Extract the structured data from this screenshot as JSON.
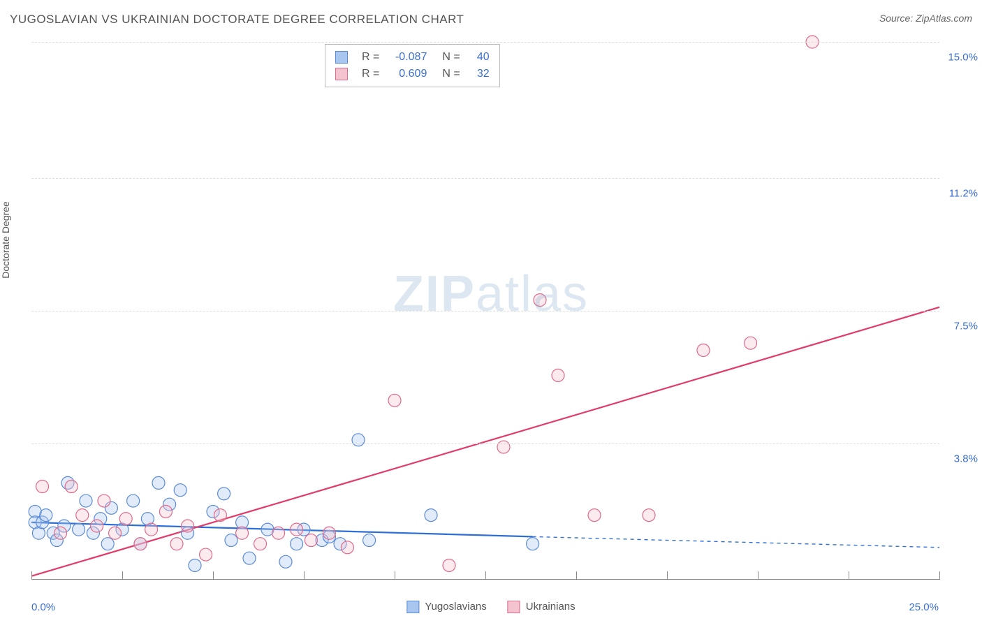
{
  "title": "YUGOSLAVIAN VS UKRAINIAN DOCTORATE DEGREE CORRELATION CHART",
  "source_prefix": "Source: ",
  "source_name": "ZipAtlas.com",
  "ylabel": "Doctorate Degree",
  "watermark_bold": "ZIP",
  "watermark_light": "atlas",
  "chart": {
    "type": "scatter",
    "background_color": "#ffffff",
    "grid_color": "#dddddd",
    "grid_dash": "4,4",
    "axis_color": "#888888",
    "label_color": "#3b6fd4",
    "label_fontsize": 15,
    "xlim": [
      0.0,
      25.0
    ],
    "ylim": [
      0.0,
      15.0
    ],
    "xtick_positions": [
      0,
      2.5,
      5,
      7.5,
      10,
      12.5,
      15,
      17.5,
      20,
      22.5,
      25
    ],
    "ytick_positions": [
      3.8,
      7.5,
      11.2,
      15.0
    ],
    "ytick_labels": [
      "3.8%",
      "7.5%",
      "11.2%",
      "15.0%"
    ],
    "x_left_label": "0.0%",
    "x_right_label": "25.0%",
    "marker_radius": 9,
    "marker_stroke_width": 1.2,
    "marker_fill_opacity": 0.35,
    "trend_line_width": 2.2
  },
  "series": [
    {
      "name": "Yugoslavians",
      "fill": "#a9c6ee",
      "stroke": "#5a8bd8",
      "line_color": "#2e6fd6",
      "r_label": "R =",
      "r_value": "-0.087",
      "n_label": "N =",
      "n_value": "40",
      "trend": {
        "x1": 0.0,
        "y1": 1.6,
        "x2": 13.8,
        "y2": 1.2,
        "ext_x2": 25.0,
        "ext_y2": 0.9
      },
      "points": [
        [
          0.1,
          1.9
        ],
        [
          0.1,
          1.6
        ],
        [
          0.2,
          1.3
        ],
        [
          0.3,
          1.6
        ],
        [
          0.4,
          1.8
        ],
        [
          0.6,
          1.3
        ],
        [
          0.7,
          1.1
        ],
        [
          0.9,
          1.5
        ],
        [
          1.0,
          2.7
        ],
        [
          1.3,
          1.4
        ],
        [
          1.5,
          2.2
        ],
        [
          1.7,
          1.3
        ],
        [
          1.9,
          1.7
        ],
        [
          2.1,
          1.0
        ],
        [
          2.2,
          2.0
        ],
        [
          2.5,
          1.4
        ],
        [
          2.8,
          2.2
        ],
        [
          3.0,
          1.0
        ],
        [
          3.2,
          1.7
        ],
        [
          3.5,
          2.7
        ],
        [
          3.8,
          2.1
        ],
        [
          4.1,
          2.5
        ],
        [
          4.3,
          1.3
        ],
        [
          4.5,
          0.4
        ],
        [
          5.0,
          1.9
        ],
        [
          5.3,
          2.4
        ],
        [
          5.5,
          1.1
        ],
        [
          5.8,
          1.6
        ],
        [
          6.0,
          0.6
        ],
        [
          6.5,
          1.4
        ],
        [
          7.0,
          0.5
        ],
        [
          7.3,
          1.0
        ],
        [
          7.5,
          1.4
        ],
        [
          8.0,
          1.1
        ],
        [
          8.2,
          1.2
        ],
        [
          8.5,
          1.0
        ],
        [
          9.0,
          3.9
        ],
        [
          9.3,
          1.1
        ],
        [
          11.0,
          1.8
        ],
        [
          13.8,
          1.0
        ]
      ]
    },
    {
      "name": "Ukrainians",
      "fill": "#f3c3cf",
      "stroke": "#e06a8a",
      "line_color": "#e23b6a",
      "r_label": "R =",
      "r_value": "0.609",
      "n_label": "N =",
      "n_value": "32",
      "trend": {
        "x1": 0.0,
        "y1": 0.1,
        "x2": 25.0,
        "y2": 7.6,
        "ext_x2": 25.0,
        "ext_y2": 7.6
      },
      "points": [
        [
          0.3,
          2.6
        ],
        [
          0.8,
          1.3
        ],
        [
          1.1,
          2.6
        ],
        [
          1.4,
          1.8
        ],
        [
          1.8,
          1.5
        ],
        [
          2.0,
          2.2
        ],
        [
          2.3,
          1.3
        ],
        [
          2.6,
          1.7
        ],
        [
          3.0,
          1.0
        ],
        [
          3.3,
          1.4
        ],
        [
          3.7,
          1.9
        ],
        [
          4.0,
          1.0
        ],
        [
          4.3,
          1.5
        ],
        [
          4.8,
          0.7
        ],
        [
          5.2,
          1.8
        ],
        [
          5.8,
          1.3
        ],
        [
          6.3,
          1.0
        ],
        [
          6.8,
          1.3
        ],
        [
          7.3,
          1.4
        ],
        [
          7.7,
          1.1
        ],
        [
          8.2,
          1.3
        ],
        [
          8.7,
          0.9
        ],
        [
          10.0,
          5.0
        ],
        [
          11.5,
          0.4
        ],
        [
          13.0,
          3.7
        ],
        [
          14.0,
          7.8
        ],
        [
          14.5,
          5.7
        ],
        [
          15.5,
          1.8
        ],
        [
          17.0,
          1.8
        ],
        [
          18.5,
          6.4
        ],
        [
          19.8,
          6.6
        ],
        [
          21.5,
          15.0
        ]
      ]
    }
  ],
  "legend": {
    "series1_label": "Yugoslavians",
    "series2_label": "Ukrainians"
  }
}
